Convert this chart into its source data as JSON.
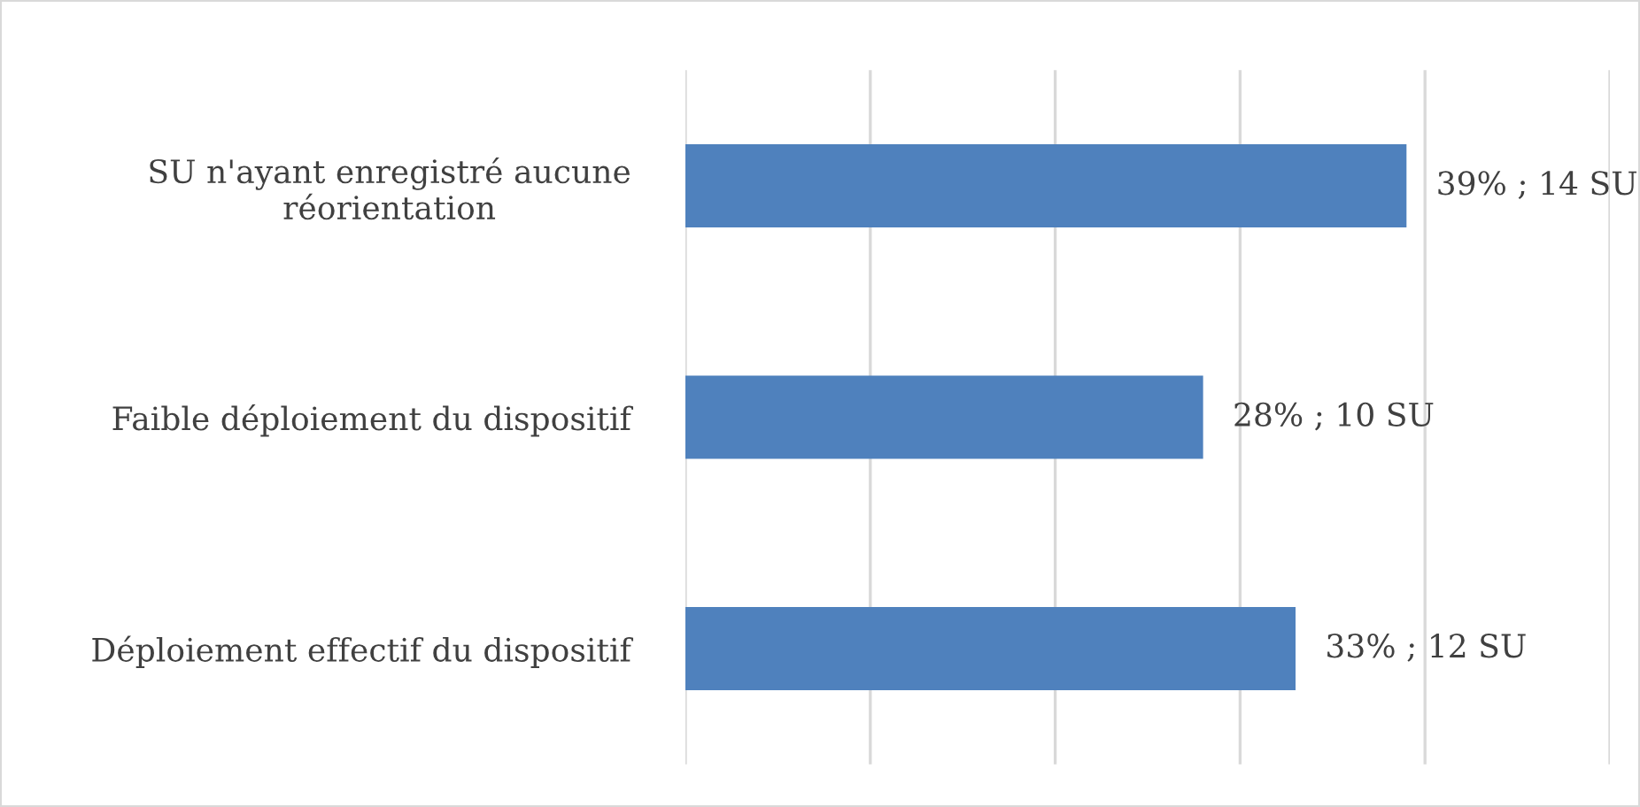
{
  "chart_data": {
    "type": "bar",
    "orientation": "horizontal",
    "categories": [
      "SU n'ayant enregistré aucune\nréorientation",
      "Faible déploiement du dispositif",
      "Déploiement effectif du dispositif"
    ],
    "values": [
      39,
      28,
      33
    ],
    "value_labels": [
      "39% ; 14 SU",
      "28% ; 10 SU",
      "33% ; 12 SU"
    ],
    "color": "#4f81bd",
    "xlim": [
      0,
      50
    ],
    "xticks": [
      {
        "value": 0,
        "label": null
      },
      {
        "value": 10,
        "label": null
      },
      {
        "value": 20,
        "label": null
      },
      {
        "value": 30,
        "label": null
      },
      {
        "value": 40,
        "label": null
      },
      {
        "value": 50,
        "label": null
      }
    ],
    "grid": "x",
    "tick_labels": "y"
  }
}
